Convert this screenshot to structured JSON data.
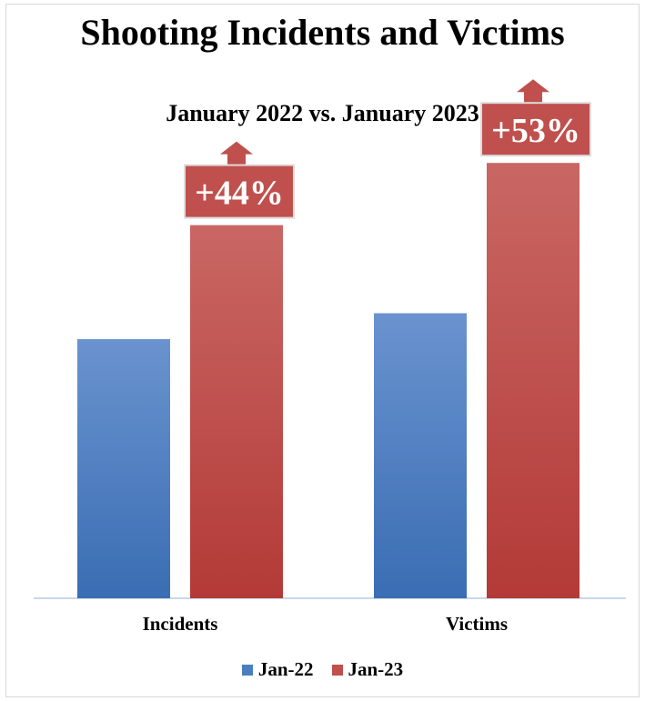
{
  "chart_data": {
    "type": "bar",
    "title": "Shooting Incidents and Victims",
    "subtitle": "January 2022 vs. January 2023",
    "categories": [
      "Incidents",
      "Victims"
    ],
    "series": [
      {
        "name": "Jan-22",
        "color": "#4a7ebf",
        "values": [
          100,
          110
        ]
      },
      {
        "name": "Jan-23",
        "color": "#c0504d",
        "values": [
          144,
          168
        ]
      }
    ],
    "annotations": [
      "+44%",
      "+53%"
    ],
    "ylim": [
      0,
      180
    ],
    "grid": false,
    "legend_position": "bottom"
  }
}
